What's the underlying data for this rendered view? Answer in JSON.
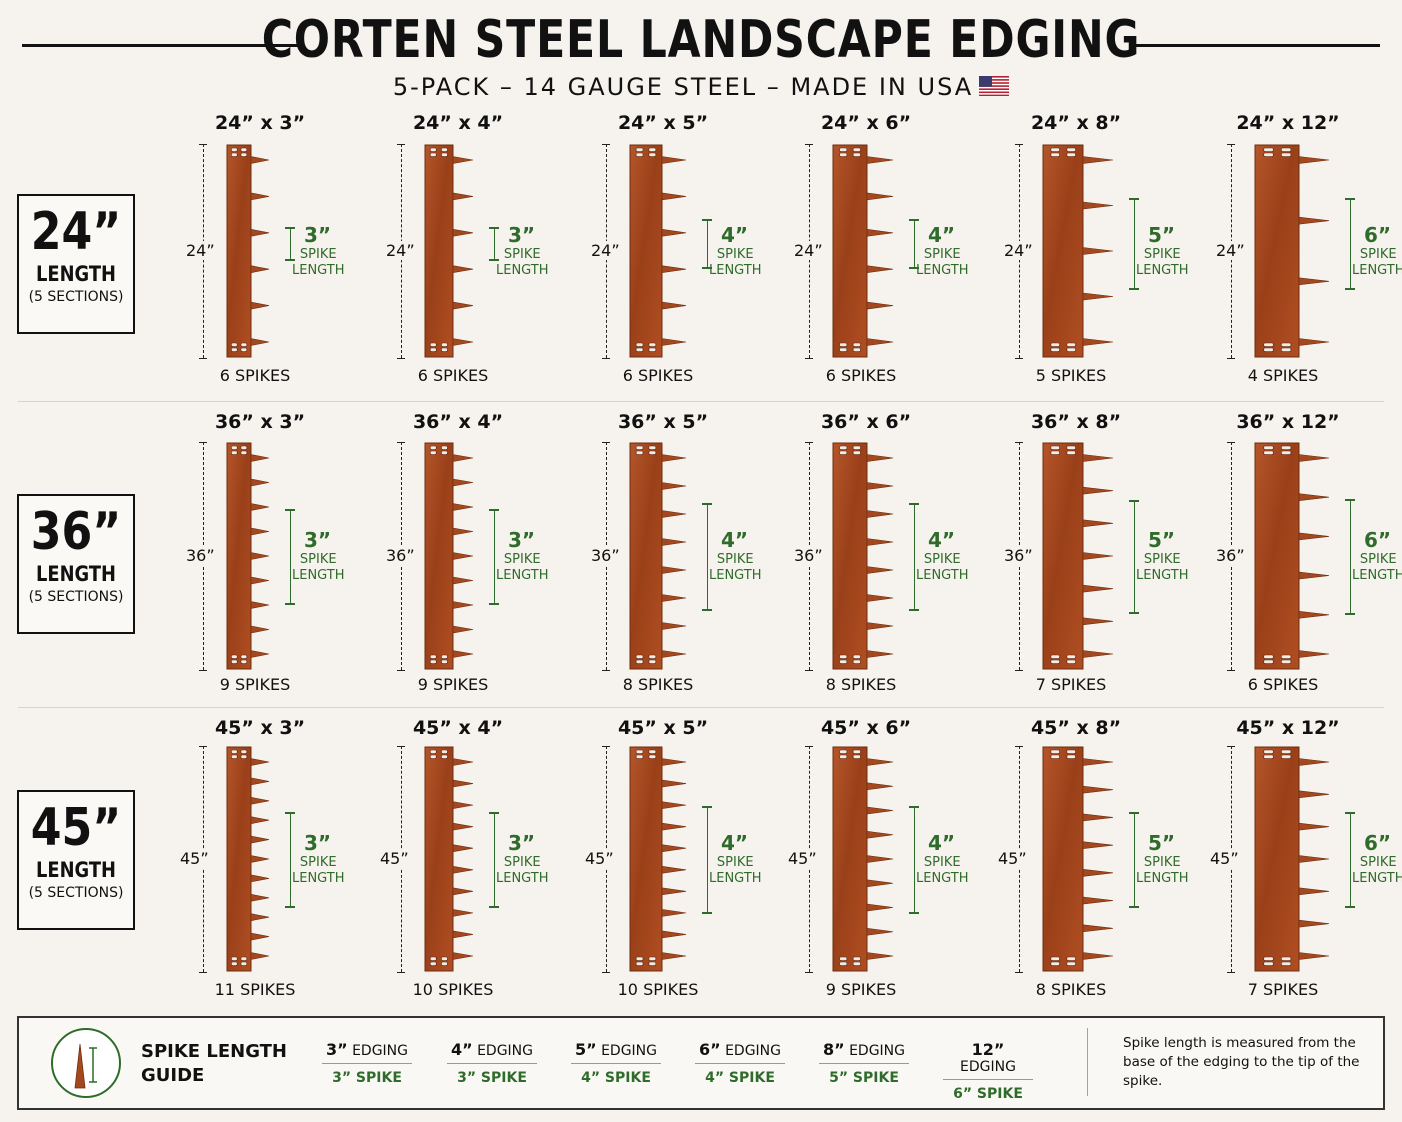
{
  "header": {
    "title": "CORTEN STEEL LANDSCAPE EDGING",
    "subtitle": "5-PACK – 14 GAUGE STEEL – MADE IN USA"
  },
  "colors": {
    "steel": "#a4491f",
    "steel_dark": "#6e2c0f",
    "green": "#2f6b2a",
    "background": "#f6f3ee"
  },
  "icons": {
    "flag": "us-flag-icon",
    "guide": "spike-icon"
  },
  "rows": [
    {
      "length": "24”",
      "length_label": "LENGTH",
      "sections": "(5 SECTIONS)",
      "items": [
        {
          "size": "24” x 3”",
          "dim": "24”",
          "spike_len": "3”",
          "spike_text": "SPIKE",
          "spike_text2": "LENGTH",
          "spikes_num": 6,
          "spikes": "6 SPIKES"
        },
        {
          "size": "24” x 4”",
          "dim": "24”",
          "spike_len": "3”",
          "spike_text": "SPIKE",
          "spike_text2": "LENGTH",
          "spikes_num": 6,
          "spikes": "6 SPIKES"
        },
        {
          "size": "24” x 5”",
          "dim": "24”",
          "spike_len": "4”",
          "spike_text": "SPIKE",
          "spike_text2": "LENGTH",
          "spikes_num": 6,
          "spikes": "6 SPIKES"
        },
        {
          "size": "24” x 6”",
          "dim": "24”",
          "spike_len": "4”",
          "spike_text": "SPIKE",
          "spike_text2": "LENGTH",
          "spikes_num": 6,
          "spikes": "6 SPIKES"
        },
        {
          "size": "24” x 8”",
          "dim": "24”",
          "spike_len": "5”",
          "spike_text": "SPIKE",
          "spike_text2": "LENGTH",
          "spikes_num": 5,
          "spikes": "5 SPIKES"
        },
        {
          "size": "24” x 12”",
          "dim": "24”",
          "spike_len": "6”",
          "spike_text": "SPIKE",
          "spike_text2": "LENGTH",
          "spikes_num": 4,
          "spikes": "4 SPIKES"
        }
      ]
    },
    {
      "length": "36”",
      "length_label": "LENGTH",
      "sections": "(5 SECTIONS)",
      "items": [
        {
          "size": "36” x 3”",
          "dim": "36”",
          "spike_len": "3”",
          "spike_text": "SPIKE",
          "spike_text2": "LENGTH",
          "spikes_num": 9,
          "spikes": "9 SPIKES"
        },
        {
          "size": "36” x 4”",
          "dim": "36”",
          "spike_len": "3”",
          "spike_text": "SPIKE",
          "spike_text2": "LENGTH",
          "spikes_num": 9,
          "spikes": "9 SPIKES"
        },
        {
          "size": "36” x 5”",
          "dim": "36”",
          "spike_len": "4”",
          "spike_text": "SPIKE",
          "spike_text2": "LENGTH",
          "spikes_num": 8,
          "spikes": "8 SPIKES"
        },
        {
          "size": "36” x 6”",
          "dim": "36”",
          "spike_len": "4”",
          "spike_text": "SPIKE",
          "spike_text2": "LENGTH",
          "spikes_num": 8,
          "spikes": "8 SPIKES"
        },
        {
          "size": "36” x 8”",
          "dim": "36”",
          "spike_len": "5”",
          "spike_text": "SPIKE",
          "spike_text2": "LENGTH",
          "spikes_num": 7,
          "spikes": "7 SPIKES"
        },
        {
          "size": "36” x 12”",
          "dim": "36”",
          "spike_len": "6”",
          "spike_text": "SPIKE",
          "spike_text2": "LENGTH",
          "spikes_num": 6,
          "spikes": "6 SPIKES"
        }
      ]
    },
    {
      "length": "45”",
      "length_label": "LENGTH",
      "sections": "(5 SECTIONS)",
      "items": [
        {
          "size": "45” x 3”",
          "dim": "45”",
          "spike_len": "3”",
          "spike_text": "SPIKE",
          "spike_text2": "LENGTH",
          "spikes_num": 11,
          "spikes": "11 SPIKES"
        },
        {
          "size": "45” x 4”",
          "dim": "45”",
          "spike_len": "3”",
          "spike_text": "SPIKE",
          "spike_text2": "LENGTH",
          "spikes_num": 10,
          "spikes": "10 SPIKES"
        },
        {
          "size": "45” x 5”",
          "dim": "45”",
          "spike_len": "4”",
          "spike_text": "SPIKE",
          "spike_text2": "LENGTH",
          "spikes_num": 10,
          "spikes": "10 SPIKES"
        },
        {
          "size": "45” x 6”",
          "dim": "45”",
          "spike_len": "4”",
          "spike_text": "SPIKE",
          "spike_text2": "LENGTH",
          "spikes_num": 9,
          "spikes": "9 SPIKES"
        },
        {
          "size": "45” x 8”",
          "dim": "45”",
          "spike_len": "5”",
          "spike_text": "SPIKE",
          "spike_text2": "LENGTH",
          "spikes_num": 8,
          "spikes": "8 SPIKES"
        },
        {
          "size": "45” x 12”",
          "dim": "45”",
          "spike_len": "6”",
          "spike_text": "SPIKE",
          "spike_text2": "LENGTH",
          "spikes_num": 7,
          "spikes": "7 SPIKES"
        }
      ]
    }
  ],
  "guide": {
    "title_line1": "SPIKE LENGTH",
    "title_line2": "GUIDE",
    "items": [
      {
        "edging_num": "3”",
        "edging_word": "EDGING",
        "spike": "3” SPIKE"
      },
      {
        "edging_num": "4”",
        "edging_word": "EDGING",
        "spike": "3” SPIKE"
      },
      {
        "edging_num": "5”",
        "edging_word": "EDGING",
        "spike": "4” SPIKE"
      },
      {
        "edging_num": "6”",
        "edging_word": "EDGING",
        "spike": "4” SPIKE"
      },
      {
        "edging_num": "8”",
        "edging_word": "EDGING",
        "spike": "5” SPIKE"
      },
      {
        "edging_num": "12”",
        "edging_word": "EDGING",
        "spike": "6” SPIKE"
      }
    ],
    "note": "Spike length is measured from the base of the edging to the tip of the spike."
  }
}
